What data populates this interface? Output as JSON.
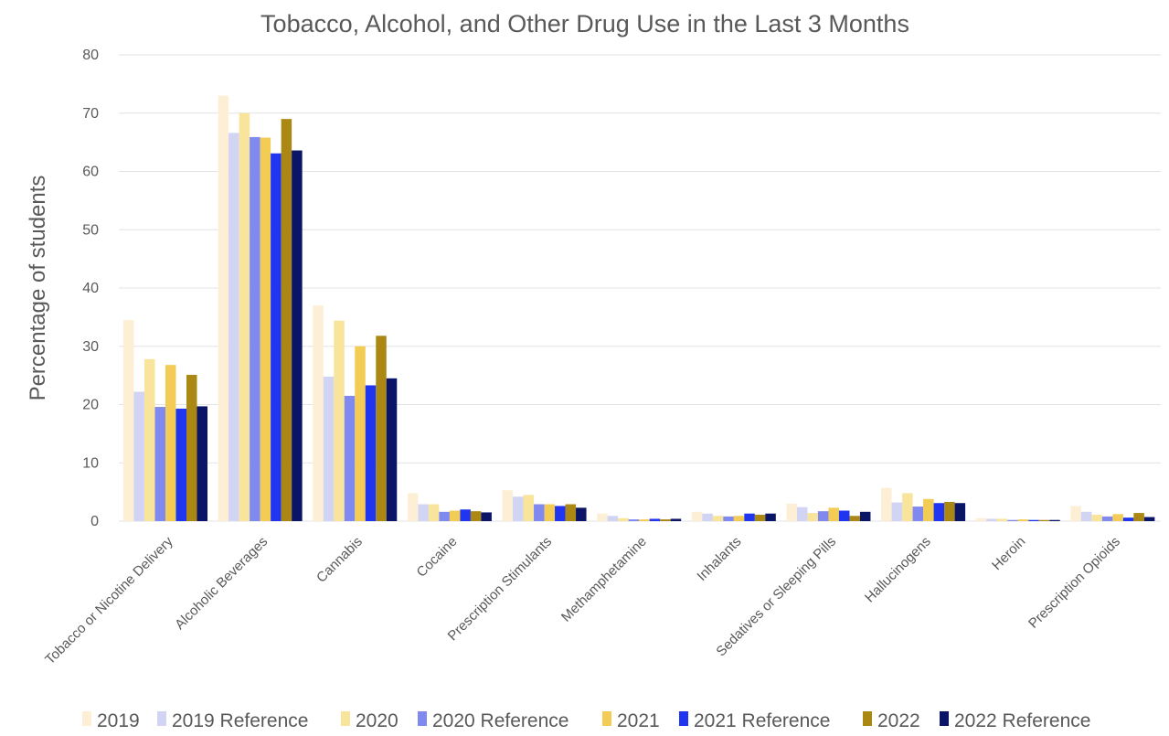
{
  "chart_data": {
    "type": "bar",
    "title": "Tobacco, Alcohol, and Other Drug Use in the Last 3 Months",
    "xlabel": "",
    "ylabel": "Percentage of students",
    "ylim": [
      0,
      80
    ],
    "yticks": [
      "0",
      "10",
      "20",
      "30",
      "40",
      "50",
      "60",
      "70",
      "80"
    ],
    "grid": true,
    "legend_position": "bottom",
    "categories": [
      "Tobacco or Nicotine Delivery",
      "Alcoholic Beverages",
      "Cannabis",
      "Cocaine",
      "Prescription Stimulants",
      "Methamphetamine",
      "Inhalants",
      "Sedatives or Sleeping Pills",
      "Hallucinogens",
      "Heroin",
      "Prescription Opioids"
    ],
    "series": [
      {
        "name": "2019",
        "color": "#fcefd6",
        "values": [
          34.5,
          73.0,
          37.0,
          4.8,
          5.3,
          1.3,
          1.6,
          3.0,
          5.7,
          0.5,
          2.6
        ]
      },
      {
        "name": "2019 Reference",
        "color": "#d1d4f2",
        "values": [
          22.2,
          66.6,
          24.8,
          2.9,
          4.2,
          0.9,
          1.3,
          2.4,
          3.2,
          0.4,
          1.6
        ]
      },
      {
        "name": "2020",
        "color": "#f8e49b",
        "values": [
          27.8,
          70.0,
          34.4,
          2.9,
          4.5,
          0.5,
          0.9,
          1.4,
          4.8,
          0.4,
          1.1
        ]
      },
      {
        "name": "2020 Reference",
        "color": "#7f89ef",
        "values": [
          19.6,
          65.9,
          21.5,
          1.6,
          2.9,
          0.3,
          0.8,
          1.7,
          2.5,
          0.2,
          0.8
        ]
      },
      {
        "name": "2021",
        "color": "#f2cc54",
        "values": [
          26.8,
          65.8,
          30.0,
          1.8,
          2.9,
          0.3,
          0.9,
          2.3,
          3.8,
          0.3,
          1.2
        ]
      },
      {
        "name": "2021 Reference",
        "color": "#1f35f0",
        "values": [
          19.3,
          63.1,
          23.3,
          2.0,
          2.6,
          0.4,
          1.3,
          1.8,
          3.1,
          0.2,
          0.6
        ]
      },
      {
        "name": "2022",
        "color": "#ab8714",
        "values": [
          25.1,
          69.0,
          31.8,
          1.7,
          2.9,
          0.3,
          1.1,
          0.9,
          3.3,
          0.2,
          1.4
        ]
      },
      {
        "name": "2022 Reference",
        "color": "#0b1567",
        "values": [
          19.7,
          63.6,
          24.5,
          1.5,
          2.3,
          0.4,
          1.3,
          1.6,
          3.1,
          0.2,
          0.7
        ]
      }
    ]
  }
}
